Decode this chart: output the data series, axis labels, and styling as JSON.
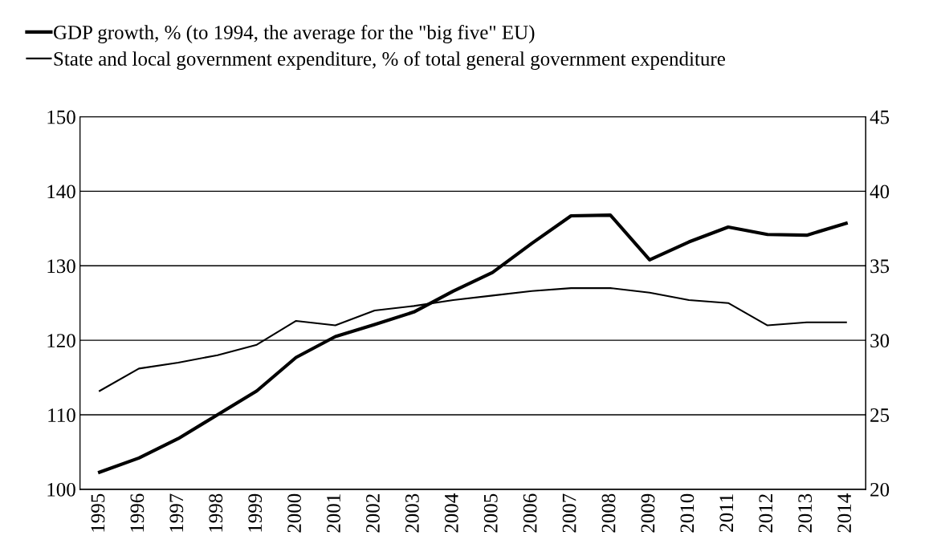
{
  "chart_data": {
    "type": "line",
    "categories": [
      "1995",
      "1996",
      "1997",
      "1998",
      "1999",
      "2000",
      "2001",
      "2002",
      "2003",
      "2004",
      "2005",
      "2006",
      "2007",
      "2008",
      "2009",
      "2010",
      "2011",
      "2012",
      "2013",
      "2014"
    ],
    "series": [
      {
        "name": "GDP growth, % (to 1994, the average for the \"big five\" EU)",
        "color": "#000000",
        "values": [
          102.3,
          104.2,
          106.8,
          110.0,
          113.2,
          117.7,
          120.5,
          122.1,
          123.8,
          126.6,
          129.1,
          133.0,
          136.7,
          136.8,
          130.8,
          133.2,
          135.2,
          134.2,
          134.1,
          135.7
        ]
      },
      {
        "name": "State and local government expenditure, % of total general government expenditure",
        "color": "#000000",
        "axis": "y2",
        "values": [
          26.6,
          28.1,
          28.5,
          29.0,
          29.7,
          31.3,
          31.0,
          32.0,
          32.3,
          32.7,
          33.0,
          33.3,
          33.5,
          33.5,
          33.2,
          32.7,
          32.5,
          31.0,
          31.2,
          31.2
        ]
      }
    ],
    "ylim": [
      100,
      150
    ],
    "yticks": [
      100,
      110,
      120,
      130,
      140,
      150
    ],
    "y2lim": [
      20,
      45
    ],
    "y2ticks": [
      20,
      25,
      30,
      35,
      40,
      45
    ],
    "grid": "y",
    "legend": "top left",
    "marker": "none",
    "line_style": "solid"
  }
}
